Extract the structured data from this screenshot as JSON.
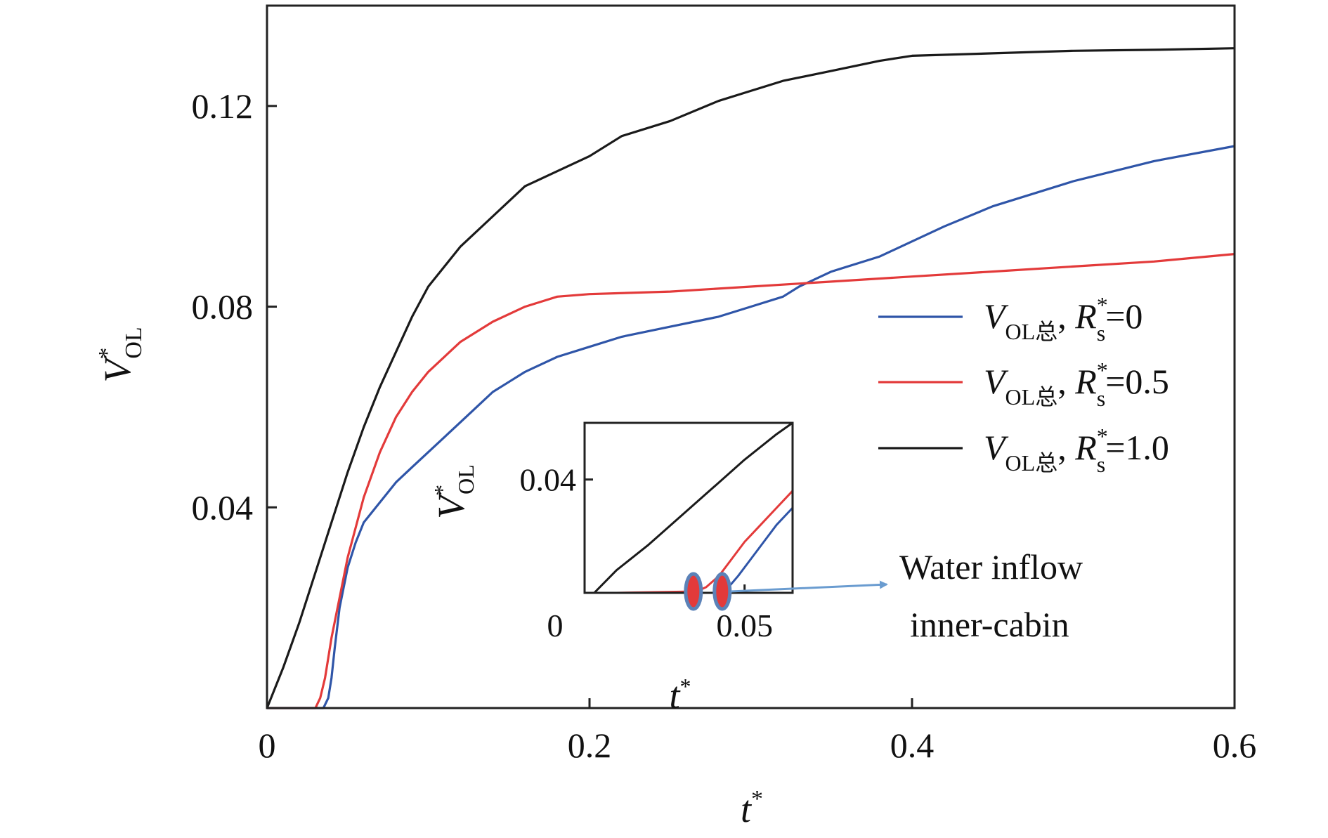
{
  "chart_data": {
    "type": "line",
    "title": "",
    "xlabel": {
      "main": "t",
      "sup": "*"
    },
    "ylabel": {
      "main": "V",
      "sup": "*",
      "sub": "OL"
    },
    "xlim": [
      0,
      0.6
    ],
    "ylim": [
      0,
      0.14
    ],
    "xticks": [
      0,
      0.2,
      0.4,
      0.6
    ],
    "xtick_labels": [
      "0",
      "0.2",
      "0.4",
      "0.6"
    ],
    "yticks": [
      0.04,
      0.08,
      0.12
    ],
    "ytick_labels": [
      "0.04",
      "0.08",
      "0.12"
    ],
    "grid": false,
    "legend_position": "right",
    "series": [
      {
        "label": {
          "v": "V",
          "sub": "OL总",
          "sep": ", ",
          "r": "R",
          "rsup": "*",
          "rsub": "s",
          "eq": "=0"
        },
        "color": "#2f55a8",
        "x": [
          0,
          0.035,
          0.038,
          0.04,
          0.042,
          0.045,
          0.05,
          0.055,
          0.06,
          0.07,
          0.08,
          0.09,
          0.1,
          0.11,
          0.12,
          0.13,
          0.14,
          0.15,
          0.16,
          0.18,
          0.2,
          0.22,
          0.25,
          0.28,
          0.3,
          0.32,
          0.33,
          0.35,
          0.38,
          0.4,
          0.42,
          0.45,
          0.48,
          0.5,
          0.55,
          0.6
        ],
        "y": [
          0,
          0,
          0.002,
          0.006,
          0.012,
          0.02,
          0.028,
          0.033,
          0.037,
          0.041,
          0.045,
          0.048,
          0.051,
          0.054,
          0.057,
          0.06,
          0.063,
          0.065,
          0.067,
          0.07,
          0.072,
          0.074,
          0.076,
          0.078,
          0.08,
          0.082,
          0.084,
          0.087,
          0.09,
          0.093,
          0.096,
          0.1,
          0.103,
          0.105,
          0.109,
          0.112
        ]
      },
      {
        "label": {
          "v": "V",
          "sub": "OL总",
          "sep": ", ",
          "r": "R",
          "rsup": "*",
          "rsub": "s",
          "eq": "=0.5"
        },
        "color": "#e33a3a",
        "x": [
          0,
          0.03,
          0.033,
          0.036,
          0.04,
          0.045,
          0.05,
          0.06,
          0.07,
          0.08,
          0.09,
          0.1,
          0.12,
          0.14,
          0.16,
          0.18,
          0.2,
          0.25,
          0.3,
          0.35,
          0.4,
          0.45,
          0.5,
          0.55,
          0.6
        ],
        "y": [
          0,
          0,
          0.002,
          0.006,
          0.014,
          0.022,
          0.03,
          0.042,
          0.051,
          0.058,
          0.063,
          0.067,
          0.073,
          0.077,
          0.08,
          0.082,
          0.0825,
          0.083,
          0.084,
          0.085,
          0.086,
          0.087,
          0.088,
          0.089,
          0.0905
        ]
      },
      {
        "label": {
          "v": "V",
          "sub": "OL总",
          "sep": ", ",
          "r": "R",
          "rsup": "*",
          "rsub": "s",
          "eq": "=1.0"
        },
        "color": "#1a1a1a",
        "x": [
          0,
          0.01,
          0.02,
          0.03,
          0.04,
          0.05,
          0.06,
          0.07,
          0.08,
          0.09,
          0.1,
          0.11,
          0.12,
          0.14,
          0.16,
          0.18,
          0.2,
          0.22,
          0.25,
          0.28,
          0.3,
          0.32,
          0.35,
          0.38,
          0.4,
          0.45,
          0.5,
          0.55,
          0.6
        ],
        "y": [
          0,
          0.008,
          0.017,
          0.027,
          0.037,
          0.047,
          0.056,
          0.064,
          0.071,
          0.078,
          0.084,
          0.088,
          0.092,
          0.098,
          0.104,
          0.107,
          0.11,
          0.114,
          0.117,
          0.121,
          0.123,
          0.125,
          0.127,
          0.129,
          0.13,
          0.1305,
          0.131,
          0.1312,
          0.1315
        ]
      }
    ],
    "inset": {
      "xlabel": {
        "main": "t",
        "sup": "*"
      },
      "ylabel": {
        "main": "V",
        "sup": "*",
        "sub": "OL"
      },
      "xlim": [
        0,
        0.065
      ],
      "ylim": [
        0,
        0.06
      ],
      "xticks": [
        0,
        0.05
      ],
      "xtick_labels": [
        "0",
        "0.05"
      ],
      "yticks": [
        0.04
      ],
      "ytick_labels": [
        "0.04"
      ],
      "series": [
        {
          "color": "#1a1a1a",
          "x": [
            0.003,
            0.01,
            0.02,
            0.03,
            0.04,
            0.05,
            0.06,
            0.065
          ],
          "y": [
            0,
            0.008,
            0.017,
            0.027,
            0.037,
            0.047,
            0.056,
            0.06
          ]
        },
        {
          "color": "#e33a3a",
          "x": [
            0.01,
            0.035,
            0.038,
            0.042,
            0.046,
            0.05,
            0.055,
            0.06,
            0.065
          ],
          "y": [
            0,
            0.0005,
            0.002,
            0.006,
            0.012,
            0.018,
            0.024,
            0.03,
            0.036
          ]
        },
        {
          "color": "#2f55a8",
          "x": [
            0.01,
            0.04,
            0.045,
            0.048,
            0.052,
            0.056,
            0.06,
            0.065
          ],
          "y": [
            0,
            0,
            0.002,
            0.006,
            0.012,
            0.018,
            0.024,
            0.03
          ]
        }
      ],
      "markers": [
        {
          "x": 0.034,
          "y": 0,
          "fill": "#e33a3a",
          "stroke": "#5b82b8"
        },
        {
          "x": 0.043,
          "y": 0,
          "fill": "#e33a3a",
          "stroke": "#5b82b8"
        }
      ]
    },
    "annotation": {
      "lines": [
        "Water inflow",
        "inner-cabin"
      ],
      "arrow_color": "#6a9cd0"
    }
  }
}
